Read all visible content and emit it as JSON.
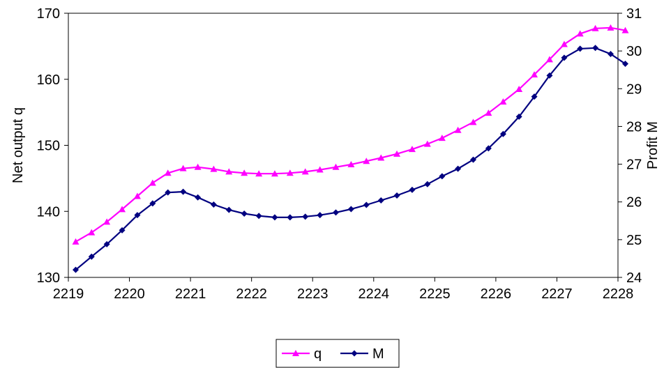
{
  "chart_data": {
    "type": "line",
    "title": "",
    "xlabel": "",
    "ylabel": "Net output q",
    "y2label": "Profit M",
    "x_ticks": [
      2219,
      2220,
      2221,
      2222,
      2223,
      2224,
      2225,
      2226,
      2227,
      2228
    ],
    "y_ticks": [
      130,
      140,
      150,
      160,
      170
    ],
    "y2_ticks": [
      24,
      25,
      26,
      27,
      28,
      29,
      30,
      31
    ],
    "xlim": [
      2219,
      2228
    ],
    "ylim": [
      130,
      170
    ],
    "y2lim": [
      24,
      31
    ],
    "grid": false,
    "legend_position": "bottom",
    "x": [
      2219.12,
      2219.38,
      2219.63,
      2219.88,
      2220.13,
      2220.38,
      2220.63,
      2220.88,
      2221.12,
      2221.38,
      2221.63,
      2221.88,
      2222.12,
      2222.38,
      2222.63,
      2222.88,
      2223.12,
      2223.38,
      2223.63,
      2223.88,
      2224.12,
      2224.38,
      2224.63,
      2224.88,
      2225.12,
      2225.38,
      2225.63,
      2225.88,
      2226.12,
      2226.38,
      2226.63,
      2226.88,
      2227.12,
      2227.38,
      2227.63,
      2227.88,
      2228.12
    ],
    "series": [
      {
        "name": "q",
        "axis": "left",
        "color": "#ff00ff",
        "marker": "triangle",
        "values": [
          135.4,
          136.8,
          138.4,
          140.3,
          142.3,
          144.3,
          145.8,
          146.5,
          146.7,
          146.4,
          146.0,
          145.8,
          145.7,
          145.7,
          145.8,
          146.0,
          146.3,
          146.7,
          147.1,
          147.6,
          148.1,
          148.7,
          149.4,
          150.2,
          151.1,
          152.3,
          153.5,
          154.9,
          156.6,
          158.5,
          160.7,
          163.0,
          165.3,
          166.9,
          167.7,
          167.8,
          167.4
        ]
      },
      {
        "name": "M",
        "axis": "right",
        "color": "#000080",
        "marker": "diamond",
        "values": [
          24.2,
          24.55,
          24.88,
          25.25,
          25.65,
          25.96,
          26.25,
          26.27,
          26.12,
          25.93,
          25.79,
          25.69,
          25.63,
          25.59,
          25.59,
          25.61,
          25.65,
          25.72,
          25.81,
          25.92,
          26.04,
          26.17,
          26.32,
          26.47,
          26.68,
          26.88,
          27.12,
          27.42,
          27.8,
          28.26,
          28.79,
          29.35,
          29.82,
          30.06,
          30.08,
          29.92,
          29.66
        ]
      }
    ]
  }
}
